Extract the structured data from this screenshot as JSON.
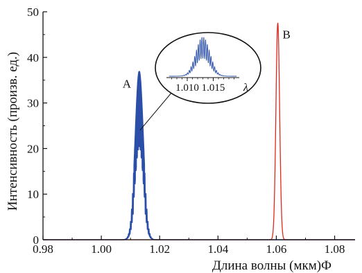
{
  "chart_data": {
    "type": "line",
    "xlabel": "Длина волны (мкм)Ф",
    "ylabel": "Интенсивность (произв. ед.)",
    "xlim": [
      0.98,
      1.087
    ],
    "ylim": [
      0,
      50
    ],
    "x_ticks": [
      0.98,
      1.0,
      1.02,
      1.04,
      1.06,
      1.08
    ],
    "x_tick_labels": [
      "0.98",
      "1.00",
      "1.02",
      "1.04",
      "1.06",
      "1.08"
    ],
    "y_ticks": [
      0,
      10,
      20,
      30,
      40,
      50
    ],
    "y_tick_labels": [
      "0",
      "10",
      "20",
      "30",
      "40",
      "50"
    ],
    "grid": false,
    "series": [
      {
        "name": "A",
        "color": "#2b4fa8",
        "peak_center": 1.013,
        "peak_height": 37,
        "half_width": 0.002,
        "fringe_period": 0.00035,
        "fringe_depth": 0.55
      },
      {
        "name": "B",
        "color": "#e0261c",
        "peak_center": 1.0605,
        "peak_height": 47.5,
        "half_width": 0.0009,
        "fringe_period": 0,
        "fringe_depth": 0
      }
    ],
    "annotations": [
      {
        "text": "A",
        "series": "A"
      },
      {
        "text": "B",
        "series": "B"
      }
    ],
    "inset": {
      "series": "A",
      "x_ticks": [
        1.01,
        1.015
      ],
      "x_tick_labels": [
        "1.010",
        "1.015"
      ],
      "axis_symbol": "λ"
    }
  }
}
